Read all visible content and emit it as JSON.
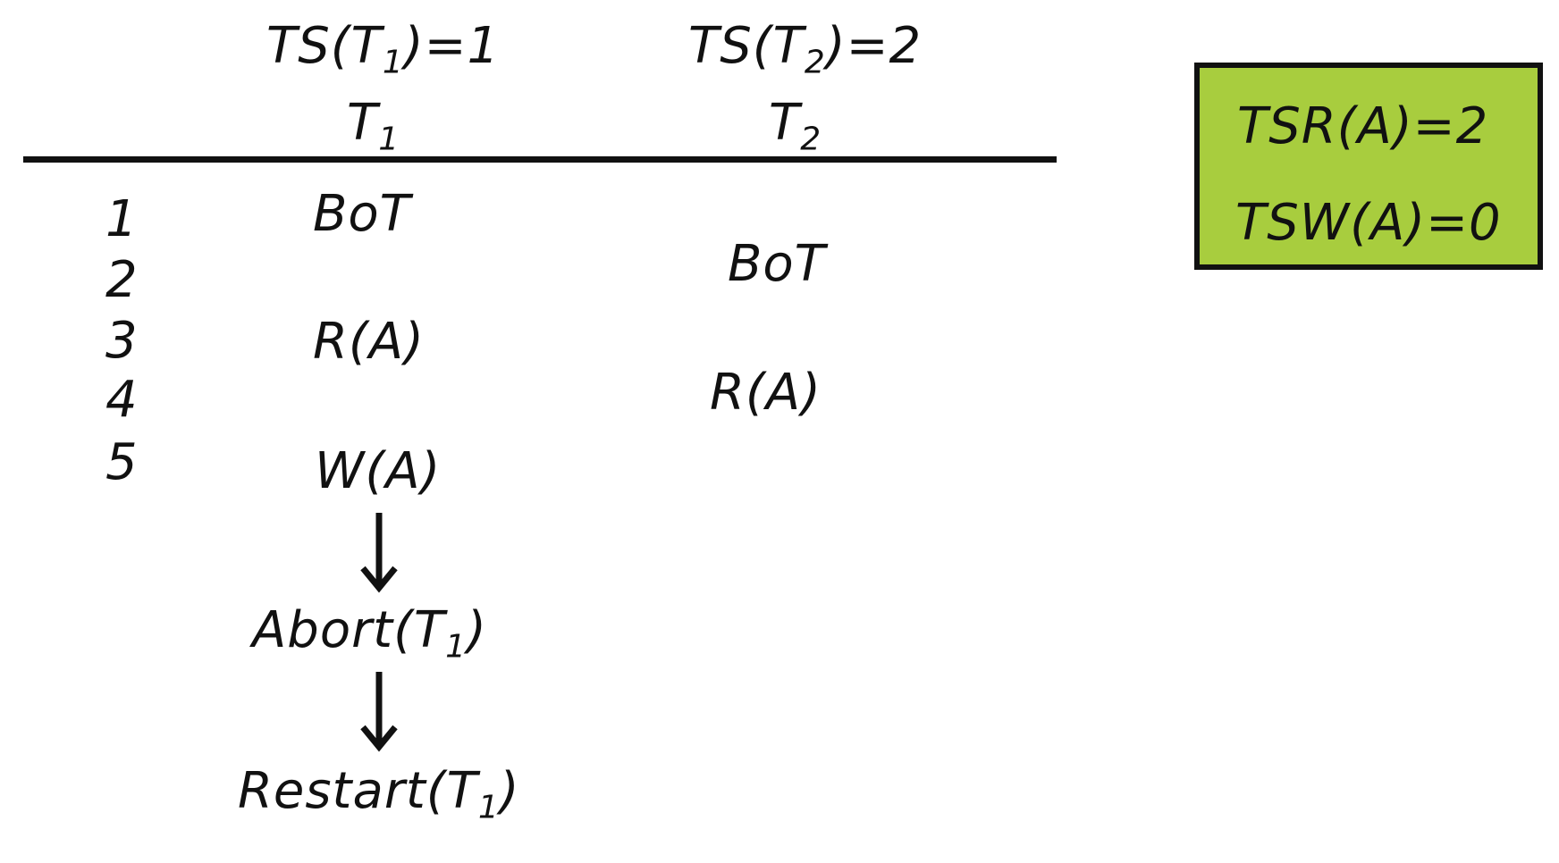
{
  "header": {
    "t1_timestamp": {
      "prefix": "TS(T",
      "sub": "1",
      "suffix": ")=1"
    },
    "t2_timestamp": {
      "prefix": "TS(T",
      "sub": "2",
      "suffix": ")=2"
    },
    "t1_column": {
      "prefix": "T",
      "sub": "1"
    },
    "t2_column": {
      "prefix": "T",
      "sub": "2"
    }
  },
  "steps": [
    "1",
    "2",
    "3",
    "4",
    "5"
  ],
  "t1_ops": {
    "bot": "BoT",
    "read": "R(A)",
    "write": "W(A)",
    "abort": {
      "prefix": "Abort(T",
      "sub": "1",
      "suffix": ")"
    },
    "restart": {
      "prefix": "Restart(T",
      "sub": "1",
      "suffix": ")"
    }
  },
  "t2_ops": {
    "bot": "BoT",
    "read": "R(A)"
  },
  "state_box": {
    "tsr": "TSR(A)=2",
    "tsw": "TSW(A)=0",
    "color": "#a8cd3e"
  }
}
